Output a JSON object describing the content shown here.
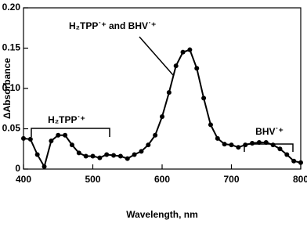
{
  "chart_data": {
    "type": "line",
    "x_label": "Wavelength, nm",
    "y_label": "ΔAbsorbance",
    "annotations": [
      "H₂TPP˙⁺ and BHV˙⁺",
      "H₂TPP˙⁺",
      "BHV˙⁺"
    ],
    "x": [
      400,
      410,
      420,
      430,
      440,
      450,
      460,
      470,
      480,
      490,
      500,
      510,
      520,
      530,
      540,
      550,
      560,
      570,
      580,
      590,
      600,
      610,
      620,
      630,
      640,
      650,
      660,
      670,
      680,
      690,
      700,
      710,
      720,
      730,
      740,
      750,
      760,
      770,
      780,
      790,
      800
    ],
    "series": [
      {
        "color": "#000000",
        "values": [
          0.038,
          0.037,
          0.018,
          0.003,
          0.035,
          0.042,
          0.042,
          0.03,
          0.02,
          0.016,
          0.016,
          0.014,
          0.018,
          0.017,
          0.016,
          0.013,
          0.018,
          0.022,
          0.03,
          0.042,
          0.065,
          0.095,
          0.128,
          0.145,
          0.148,
          0.125,
          0.088,
          0.055,
          0.038,
          0.031,
          0.03,
          0.027,
          0.03,
          0.032,
          0.033,
          0.033,
          0.03,
          0.025,
          0.018,
          0.01,
          0.008
        ]
      }
    ],
    "xlim": [
      400,
      800
    ],
    "xticks": [
      400,
      500,
      600,
      700,
      800
    ],
    "ylim": [
      0,
      0.2
    ],
    "yticks": [
      0,
      0.05,
      {
        "value": 0.1,
        "label": "0.10"
      },
      0.15,
      {
        "value": 0.2,
        "label": "0.20"
      }
    ]
  }
}
